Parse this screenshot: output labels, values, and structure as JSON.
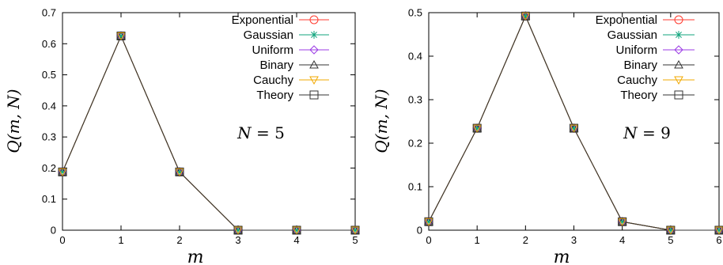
{
  "chart_data": [
    {
      "type": "line",
      "title": "",
      "xlabel": "m",
      "ylabel": "Q(m, N)",
      "annotation": {
        "label": "N",
        "value": "5"
      },
      "xlim": [
        0,
        5
      ],
      "ylim": [
        0,
        0.7
      ],
      "xticks": [
        "0",
        "1",
        "2",
        "3",
        "4",
        "5"
      ],
      "yticks": [
        "0",
        "0.1",
        "0.2",
        "0.3",
        "0.4",
        "0.5",
        "0.6",
        "0.7"
      ],
      "legend_position": "top-right",
      "x": [
        0,
        1,
        2,
        3,
        4,
        5
      ],
      "series": [
        {
          "name": "Exponential",
          "marker": "circle",
          "color": "#ff3b2f",
          "values": [
            0.1875,
            0.625,
            0.1875,
            0,
            0,
            0
          ]
        },
        {
          "name": "Gaussian",
          "marker": "asterisk",
          "color": "#12a57e",
          "values": [
            0.1875,
            0.625,
            0.1875,
            0,
            0,
            0
          ]
        },
        {
          "name": "Uniform",
          "marker": "diamond",
          "color": "#9b3be5",
          "values": [
            0.1875,
            0.625,
            0.1875,
            0,
            0,
            0
          ]
        },
        {
          "name": "Binary",
          "marker": "triangle-up",
          "color": "#333333",
          "values": [
            0.1875,
            0.625,
            0.1875,
            0,
            0,
            0
          ]
        },
        {
          "name": "Cauchy",
          "marker": "triangle-down",
          "color": "#f2a900",
          "values": [
            0.1875,
            0.625,
            0.1875,
            0,
            0,
            0
          ]
        },
        {
          "name": "Theory",
          "marker": "square",
          "color": "#333333",
          "values": [
            0.1875,
            0.625,
            0.1875,
            0,
            0,
            0
          ]
        }
      ]
    },
    {
      "type": "line",
      "title": "",
      "xlabel": "m",
      "ylabel": "Q(m, N)",
      "annotation": {
        "label": "N",
        "value": "9"
      },
      "xlim": [
        0,
        6
      ],
      "ylim": [
        0,
        0.5
      ],
      "xticks": [
        "0",
        "1",
        "2",
        "3",
        "4",
        "5",
        "6"
      ],
      "yticks": [
        "0",
        "0.1",
        "0.2",
        "0.3",
        "0.4",
        "0.5"
      ],
      "legend_position": "top-right",
      "x": [
        0,
        1,
        2,
        3,
        4,
        5,
        6
      ],
      "series": [
        {
          "name": "Exponential",
          "marker": "circle",
          "color": "#ff3b2f",
          "values": [
            0.0195,
            0.2344,
            0.4922,
            0.2344,
            0.0195,
            0,
            0
          ]
        },
        {
          "name": "Gaussian",
          "marker": "asterisk",
          "color": "#12a57e",
          "values": [
            0.0195,
            0.2344,
            0.4922,
            0.2344,
            0.0195,
            0,
            0
          ]
        },
        {
          "name": "Uniform",
          "marker": "diamond",
          "color": "#9b3be5",
          "values": [
            0.0195,
            0.2344,
            0.4922,
            0.2344,
            0.0195,
            0,
            0
          ]
        },
        {
          "name": "Binary",
          "marker": "triangle-up",
          "color": "#333333",
          "values": [
            0.0195,
            0.2344,
            0.4922,
            0.2344,
            0.0195,
            0,
            0
          ]
        },
        {
          "name": "Cauchy",
          "marker": "triangle-down",
          "color": "#f2a900",
          "values": [
            0.0195,
            0.2344,
            0.4922,
            0.2344,
            0.0195,
            0,
            0
          ]
        },
        {
          "name": "Theory",
          "marker": "square",
          "color": "#333333",
          "values": [
            0.0195,
            0.2344,
            0.4922,
            0.2344,
            0.0195,
            0,
            0
          ]
        }
      ]
    }
  ]
}
